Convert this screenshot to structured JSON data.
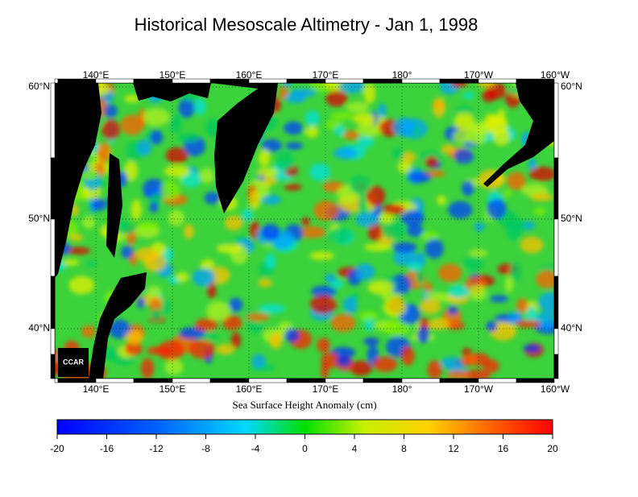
{
  "title": "Historical Mesoscale Altimetry - Jan 1, 1998",
  "lon_labels": [
    "140°E",
    "150°E",
    "160°E",
    "170°E",
    "180°",
    "170°W",
    "160°W"
  ],
  "lat_labels": [
    "60°N",
    "50°N",
    "40°N"
  ],
  "colorbar": {
    "label": "Sea Surface Height Anomaly (cm)",
    "range": [
      -20,
      20
    ],
    "ticks": [
      -20,
      -16,
      -12,
      -8,
      -4,
      0,
      4,
      8,
      12,
      16,
      20
    ]
  },
  "logo": "CCAR"
}
